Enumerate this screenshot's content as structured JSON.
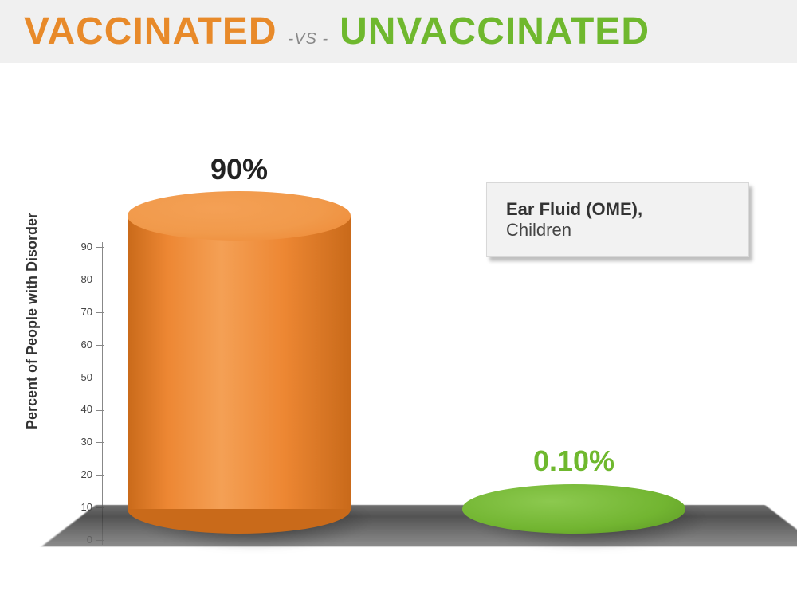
{
  "header": {
    "word1": "VACCINATED",
    "vs": "-VS -",
    "word2": "UNVACCINATED",
    "word1_color": "#e88a2a",
    "vs_color": "#888888",
    "word2_color": "#6fb82e",
    "bg_color": "#f0f0f0",
    "fontsize": 48
  },
  "infobox": {
    "title": "Ear Fluid (OME),",
    "subtitle": "Children",
    "bg_color": "#f2f2f2",
    "border_color": "#d8d8d8",
    "title_fontsize": 22
  },
  "chart": {
    "type": "3d-cylinder-bar",
    "y_axis_label": "Percent of People with Disorder",
    "y_axis_fontsize": 18,
    "ylim": [
      0,
      90
    ],
    "ytick_step": 10,
    "yticks": [
      0,
      10,
      20,
      30,
      40,
      50,
      60,
      70,
      80,
      90
    ],
    "tick_fontsize": 13,
    "tick_color": "#444444",
    "axis_color": "#888888",
    "floor_color_dark": "#333333",
    "floor_color_light": "#777777",
    "background_color": "#ffffff",
    "series": [
      {
        "name": "vaccinated",
        "value": 90,
        "display": "90%",
        "label_color": "#222222",
        "fill_color": "#ed8733",
        "fill_color_dark": "#c96a1a",
        "fill_color_light": "#f4a055",
        "top_color": "#f19a4b"
      },
      {
        "name": "unvaccinated",
        "value": 0.1,
        "display": "0.10%",
        "label_color": "#6fb82e",
        "fill_color": "#72b531",
        "fill_color_dark": "#5a9424",
        "fill_color_light": "#8cc94f",
        "top_color": "#7dbf3d"
      }
    ],
    "value_label_fontsize": 36,
    "cylinder_width": 280,
    "cylinder_ellipse_ratio": 0.22
  }
}
